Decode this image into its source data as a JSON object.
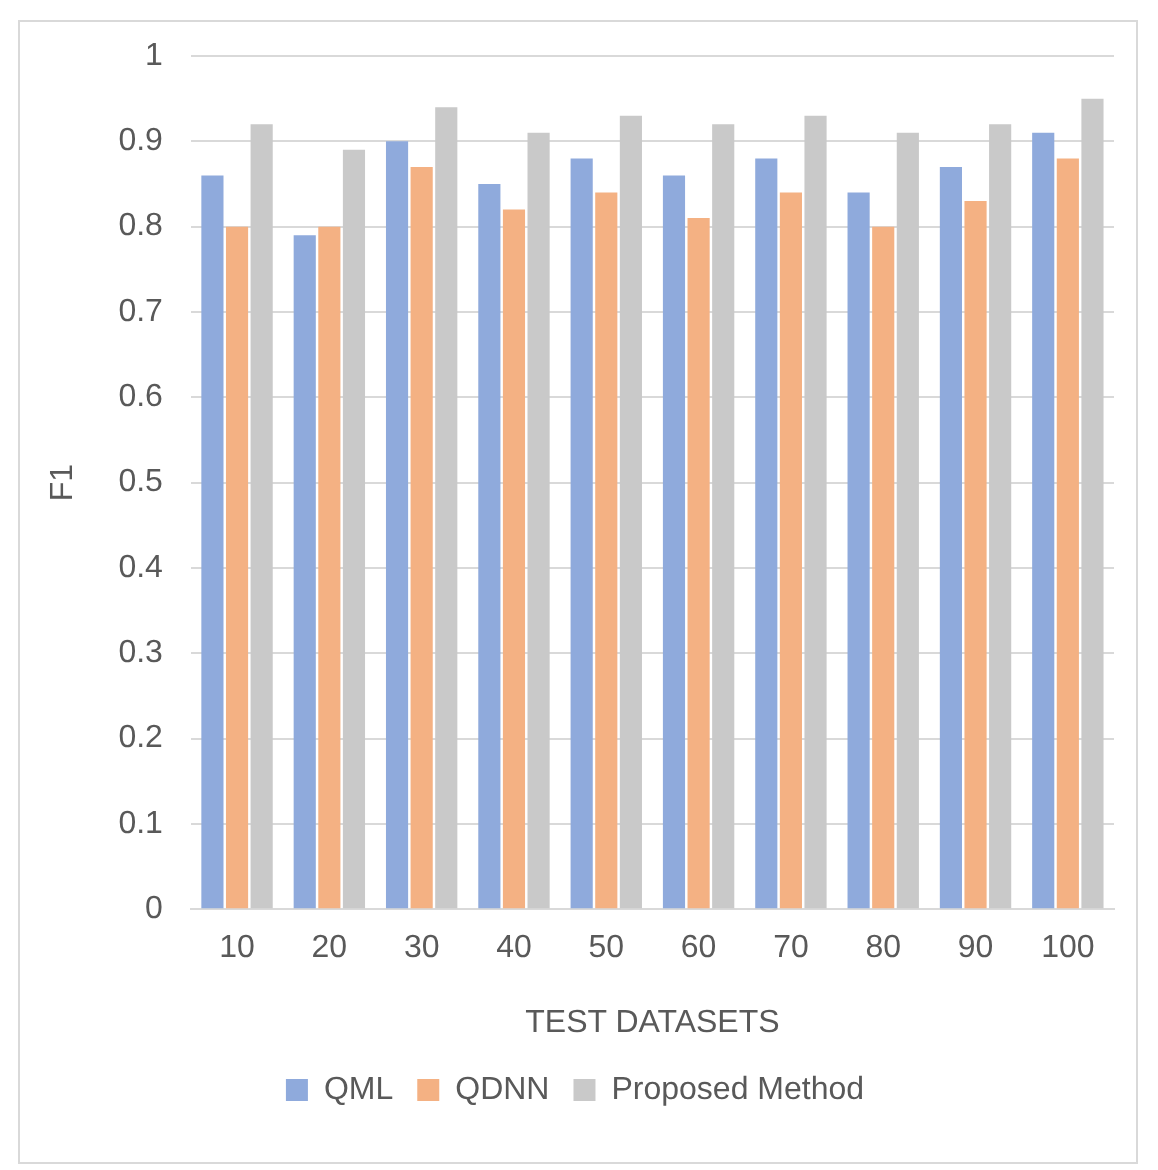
{
  "chart_data": {
    "type": "bar",
    "xlabel": "TEST DATASETS",
    "ylabel": "F1",
    "categories": [
      "10",
      "20",
      "30",
      "40",
      "50",
      "60",
      "70",
      "80",
      "90",
      "100"
    ],
    "series": [
      {
        "name": "QML",
        "color": "#8faadc",
        "values": [
          0.86,
          0.79,
          0.9,
          0.85,
          0.88,
          0.86,
          0.88,
          0.84,
          0.87,
          0.91
        ]
      },
      {
        "name": "QDNN",
        "color": "#f4b183",
        "values": [
          0.8,
          0.8,
          0.87,
          0.82,
          0.84,
          0.81,
          0.84,
          0.8,
          0.83,
          0.88
        ]
      },
      {
        "name": "Proposed Method",
        "color": "#c9c9c9",
        "values": [
          0.92,
          0.89,
          0.94,
          0.91,
          0.93,
          0.92,
          0.93,
          0.91,
          0.92,
          0.95
        ]
      }
    ],
    "ylim": [
      0,
      1
    ],
    "yticks": [
      0,
      0.1,
      0.2,
      0.3,
      0.4,
      0.5,
      0.6,
      0.7,
      0.8,
      0.9,
      1
    ],
    "grid": "y",
    "legend": "bottom"
  }
}
